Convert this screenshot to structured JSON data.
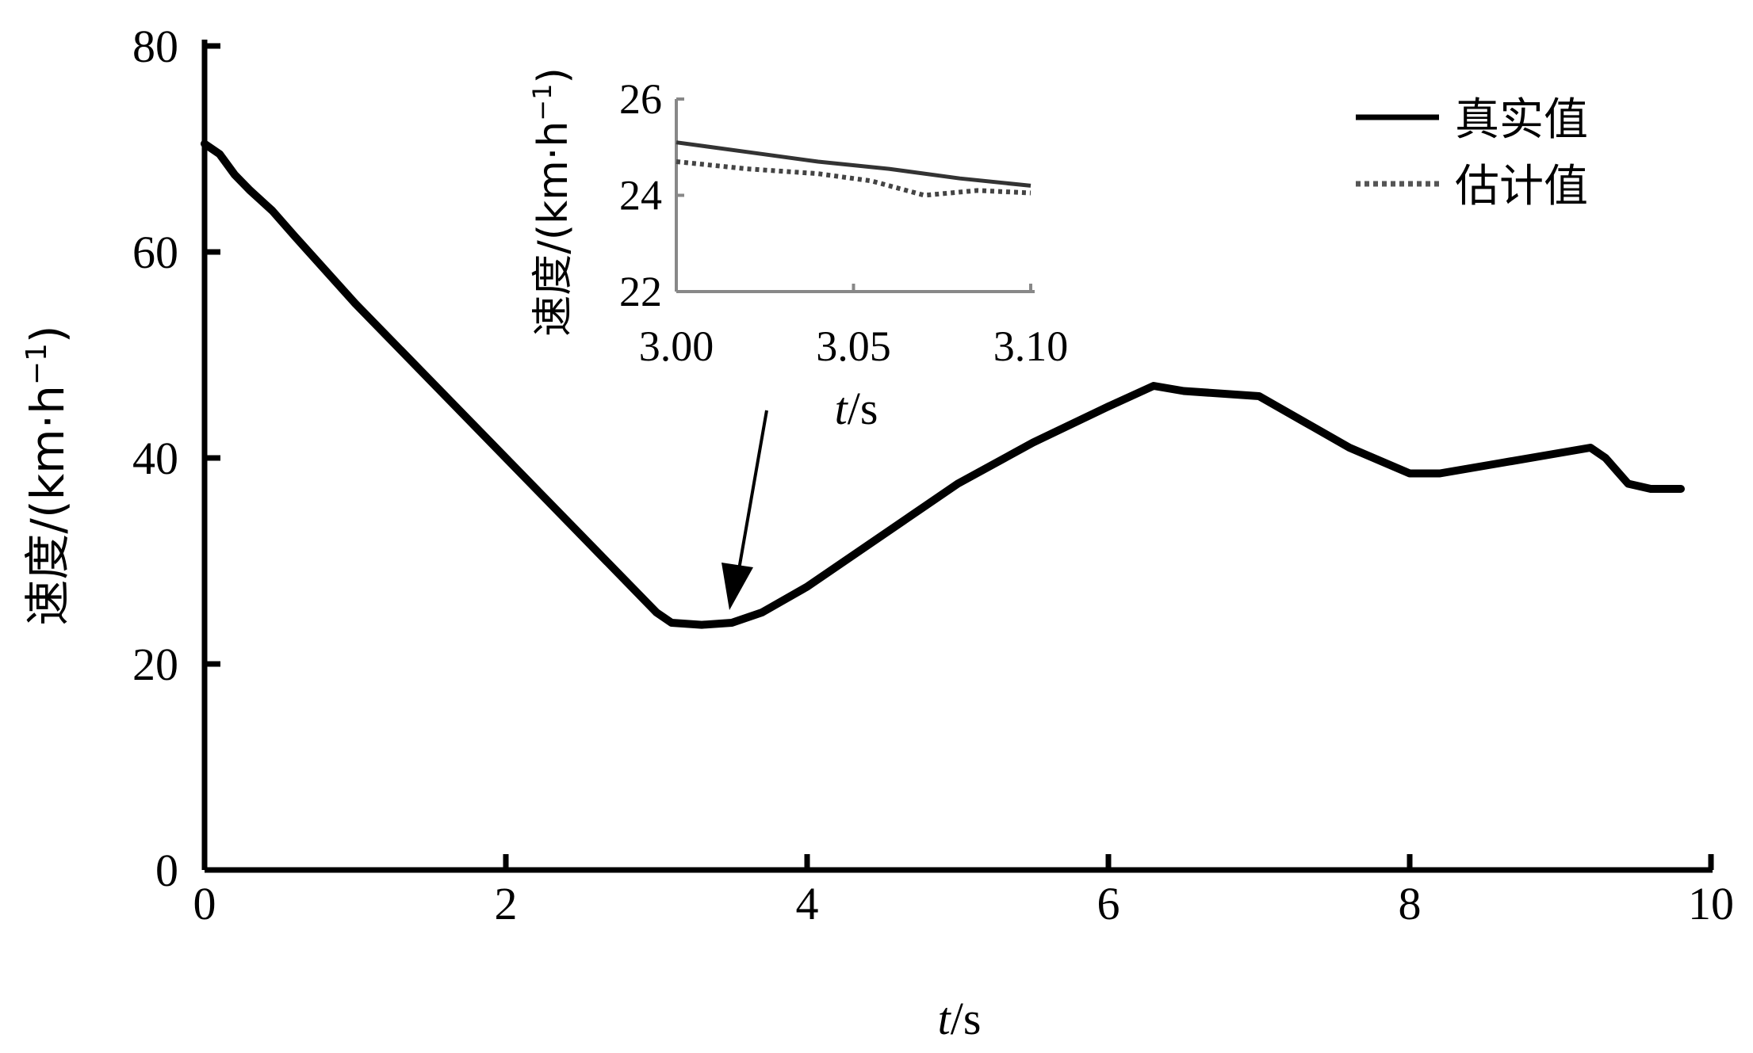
{
  "chart_data": [
    {
      "type": "line",
      "title": "",
      "xlabel_italic": "t",
      "xlabel_rest": "/s",
      "ylabel_main": "速度/(km·h",
      "ylabel_sup": "−1",
      "ylabel_close": ")",
      "xlim": [
        0,
        10
      ],
      "ylim": [
        0,
        80
      ],
      "x_ticks": [
        "0",
        "2",
        "4",
        "6",
        "8",
        "10"
      ],
      "y_ticks": [
        "0",
        "20",
        "40",
        "60",
        "80"
      ],
      "grid": false,
      "legend_position": "top-right",
      "series": [
        {
          "name": "真实值",
          "style": "solid",
          "x": [
            0,
            0.1,
            0.2,
            0.3,
            0.45,
            0.6,
            1.0,
            1.5,
            2.0,
            2.5,
            3.0,
            3.1,
            3.3,
            3.5,
            3.7,
            4.0,
            4.5,
            5.0,
            5.5,
            6.0,
            6.3,
            6.5,
            7.0,
            7.3,
            7.6,
            8.0,
            8.2,
            8.6,
            9.0,
            9.2,
            9.3,
            9.45,
            9.6,
            9.8
          ],
          "y": [
            70.5,
            69.5,
            67.5,
            66,
            64,
            61.5,
            55,
            47.5,
            40,
            32.5,
            25,
            24,
            23.8,
            24,
            25,
            27.5,
            32.5,
            37.5,
            41.5,
            45,
            47,
            46.5,
            46,
            43.5,
            41,
            38.5,
            38.5,
            39.5,
            40.5,
            41,
            40,
            37.5,
            37,
            37
          ]
        },
        {
          "name": "估计值",
          "style": "dotted",
          "x": [
            0,
            0.1,
            0.2,
            0.3,
            0.45,
            0.6,
            1.0,
            1.5,
            2.0,
            2.5,
            3.0,
            3.1,
            3.3,
            3.5,
            3.7,
            4.0,
            4.5,
            5.0,
            5.5,
            6.0,
            6.3,
            6.5,
            7.0,
            7.3,
            7.6,
            8.0,
            8.2,
            8.6,
            9.0,
            9.2,
            9.3,
            9.45,
            9.6,
            9.8
          ],
          "y": [
            70.5,
            69.5,
            67.5,
            66,
            64,
            61.5,
            55,
            47.5,
            40,
            32.5,
            25,
            24,
            23.8,
            24,
            25,
            27.5,
            32.5,
            37.5,
            41.5,
            45,
            47,
            46.5,
            46,
            43.5,
            41,
            38.5,
            38.5,
            39.5,
            40.5,
            41,
            40,
            37.5,
            37,
            37
          ]
        }
      ],
      "annotation_arrow_target": {
        "x": 3.45,
        "y": 24
      }
    },
    {
      "type": "line",
      "role": "inset",
      "title": "",
      "xlabel_italic": "t",
      "xlabel_rest": "/s",
      "ylabel_main": "速度/(km·h",
      "ylabel_sup": "−1",
      "ylabel_close": ")",
      "xlim": [
        3.0,
        3.1
      ],
      "ylim": [
        22,
        26
      ],
      "x_ticks": [
        "3.00",
        "3.05",
        "3.10"
      ],
      "y_ticks": [
        "22",
        "24",
        "26"
      ],
      "series": [
        {
          "name": "真实值",
          "style": "solid",
          "x": [
            3.0,
            3.02,
            3.04,
            3.06,
            3.08,
            3.1
          ],
          "y": [
            25.1,
            24.9,
            24.7,
            24.55,
            24.35,
            24.2
          ]
        },
        {
          "name": "估计值",
          "style": "dotted",
          "x": [
            3.0,
            3.02,
            3.04,
            3.055,
            3.07,
            3.085,
            3.1
          ],
          "y": [
            24.7,
            24.55,
            24.45,
            24.3,
            24.0,
            24.1,
            24.05
          ]
        }
      ]
    }
  ],
  "legend": [
    {
      "label": "真实值",
      "style": "solid"
    },
    {
      "label": "估计值",
      "style": "dotted"
    }
  ]
}
